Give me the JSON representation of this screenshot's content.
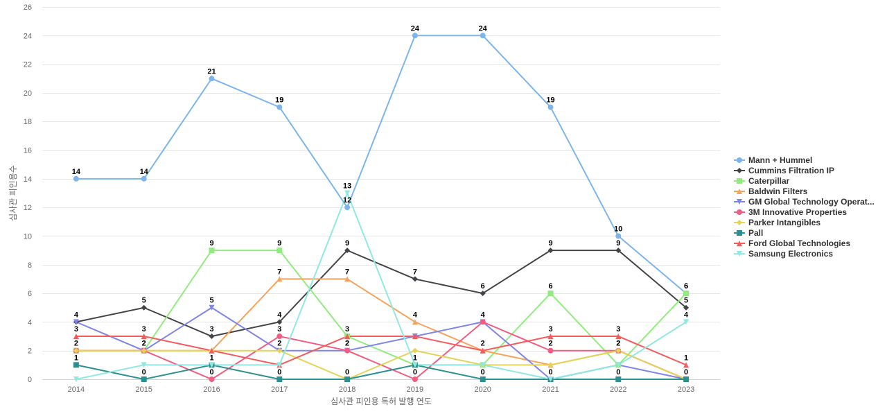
{
  "chart_data": {
    "type": "line",
    "title": "",
    "xlabel": "심사관 피인용 특허 발행 연도",
    "ylabel": "심사관 피인용수",
    "x": [
      "2014",
      "2015",
      "2016",
      "2017",
      "2018",
      "2019",
      "2020",
      "2021",
      "2022",
      "2023"
    ],
    "ylim": [
      0,
      26
    ],
    "yticks": [
      0,
      2,
      4,
      6,
      8,
      10,
      12,
      14,
      16,
      18,
      20,
      22,
      24,
      26
    ],
    "grid": true,
    "legend_position": "right",
    "series": [
      {
        "name": "Mann + Hummel",
        "legend_label": "Mann + Hummel",
        "color": "#7cb5ec",
        "marker": "circle",
        "values": [
          14,
          14,
          21,
          19,
          12,
          24,
          24,
          19,
          10,
          6
        ]
      },
      {
        "name": "Cummins Filtration IP",
        "legend_label": "Cummins Filtration IP",
        "color": "#434348",
        "marker": "diamond",
        "values": [
          4,
          5,
          3,
          4,
          9,
          7,
          6,
          9,
          9,
          5
        ]
      },
      {
        "name": "Caterpillar",
        "legend_label": "Caterpillar",
        "color": "#90ed7d",
        "marker": "square",
        "values": [
          2,
          2,
          9,
          9,
          3,
          1,
          1,
          6,
          1,
          6
        ]
      },
      {
        "name": "Baldwin Filters",
        "legend_label": "Baldwin Filters",
        "color": "#f7a35c",
        "marker": "triangle",
        "values": [
          2,
          2,
          2,
          7,
          7,
          4,
          2,
          1,
          2,
          0
        ]
      },
      {
        "name": "GM Global Technology Operations",
        "legend_label": "GM Global Technology Operat...",
        "color": "#8085e9",
        "marker": "triangle-down",
        "values": [
          4,
          2,
          5,
          2,
          2,
          3,
          4,
          0,
          1,
          0
        ]
      },
      {
        "name": "3M Innovative Properties",
        "legend_label": "3M Innovative Properties",
        "color": "#f15c80",
        "marker": "circle",
        "values": [
          2,
          2,
          0,
          3,
          2,
          0,
          4,
          2,
          2,
          0
        ]
      },
      {
        "name": "Parker Intangibles",
        "legend_label": "Parker Intangibles",
        "color": "#e4d354",
        "marker": "diamond",
        "values": [
          2,
          2,
          2,
          2,
          0,
          2,
          1,
          1,
          2,
          0
        ]
      },
      {
        "name": "Pall",
        "legend_label": "Pall",
        "color": "#2b908f",
        "marker": "square",
        "values": [
          1,
          0,
          1,
          0,
          0,
          1,
          0,
          0,
          0,
          0
        ]
      },
      {
        "name": "Ford Global Technologies",
        "legend_label": "Ford Global Technologies",
        "color": "#f45b5b",
        "marker": "triangle",
        "values": [
          3,
          3,
          2,
          1,
          3,
          3,
          2,
          3,
          3,
          1
        ]
      },
      {
        "name": "Samsung Electronics",
        "legend_label": "Samsung Electronics",
        "color": "#91e8e1",
        "marker": "triangle-down",
        "values": [
          0,
          1,
          1,
          1,
          13,
          1,
          1,
          0,
          1,
          4
        ]
      }
    ],
    "data_labels_visible": {
      "Mann + Hummel": [
        true,
        true,
        true,
        true,
        true,
        true,
        true,
        true,
        true,
        true
      ],
      "Cummins Filtration IP": [
        true,
        true,
        true,
        true,
        true,
        true,
        true,
        true,
        true,
        true
      ],
      "Caterpillar": [
        false,
        false,
        true,
        true,
        true,
        false,
        false,
        true,
        false,
        true
      ],
      "Baldwin Filters": [
        false,
        true,
        false,
        true,
        true,
        true,
        true,
        false,
        true,
        false
      ],
      "GM Global Technology Operations": [
        false,
        false,
        true,
        true,
        true,
        false,
        false,
        false,
        false,
        false
      ],
      "3M Innovative Properties": [
        true,
        true,
        true,
        true,
        true,
        true,
        true,
        true,
        true,
        false
      ],
      "Parker Intangibles": [
        false,
        false,
        false,
        false,
        false,
        false,
        false,
        false,
        false,
        false
      ],
      "Pall": [
        true,
        true,
        true,
        true,
        true,
        true,
        true,
        true,
        true,
        true
      ],
      "Ford Global Technologies": [
        true,
        true,
        false,
        false,
        false,
        false,
        false,
        true,
        true,
        true
      ],
      "Samsung Electronics": [
        false,
        false,
        false,
        false,
        true,
        false,
        false,
        false,
        false,
        true
      ]
    }
  }
}
